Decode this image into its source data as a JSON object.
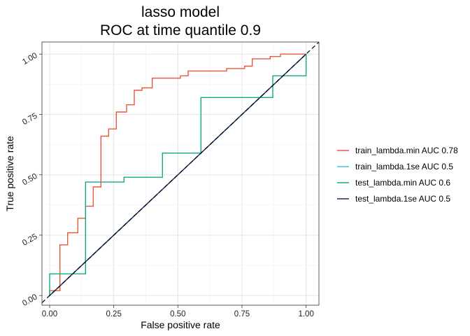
{
  "chart_data": {
    "type": "line",
    "title": "lasso model",
    "subtitle": "ROC at time quantile 0.9",
    "xlabel": "False positive rate",
    "ylabel": "True positive rate",
    "xlim": [
      -0.03,
      1.05
    ],
    "ylim": [
      -0.04,
      1.05
    ],
    "x_ticks": [
      0.0,
      0.25,
      0.5,
      0.75,
      1.0
    ],
    "x_tick_labels": [
      "0.00",
      "0.25",
      "0.50",
      "0.75",
      "1.00"
    ],
    "y_ticks": [
      0.0,
      0.25,
      0.5,
      0.75,
      1.0
    ],
    "y_tick_labels": [
      "0.00",
      "0.25",
      "0.50",
      "0.75",
      "1.00"
    ],
    "grid": true,
    "legend_position": "right",
    "diagonal_reference": true,
    "series": [
      {
        "name": "train_lambda.min AUC 0.78",
        "color": "#e8593a",
        "points": [
          [
            0,
            0
          ],
          [
            0,
            0.02
          ],
          [
            0.04,
            0.02
          ],
          [
            0.04,
            0.21
          ],
          [
            0.07,
            0.21
          ],
          [
            0.07,
            0.26
          ],
          [
            0.11,
            0.26
          ],
          [
            0.11,
            0.32
          ],
          [
            0.14,
            0.32
          ],
          [
            0.14,
            0.37
          ],
          [
            0.17,
            0.37
          ],
          [
            0.17,
            0.45
          ],
          [
            0.2,
            0.45
          ],
          [
            0.2,
            0.66
          ],
          [
            0.23,
            0.66
          ],
          [
            0.23,
            0.69
          ],
          [
            0.26,
            0.69
          ],
          [
            0.26,
            0.76
          ],
          [
            0.3,
            0.76
          ],
          [
            0.3,
            0.79
          ],
          [
            0.33,
            0.79
          ],
          [
            0.33,
            0.85
          ],
          [
            0.36,
            0.85
          ],
          [
            0.36,
            0.86
          ],
          [
            0.4,
            0.86
          ],
          [
            0.4,
            0.9
          ],
          [
            0.47,
            0.9
          ],
          [
            0.47,
            0.9
          ],
          [
            0.51,
            0.9
          ],
          [
            0.51,
            0.91
          ],
          [
            0.54,
            0.91
          ],
          [
            0.54,
            0.93
          ],
          [
            0.69,
            0.93
          ],
          [
            0.69,
            0.94
          ],
          [
            0.76,
            0.94
          ],
          [
            0.76,
            0.95
          ],
          [
            0.79,
            0.95
          ],
          [
            0.79,
            0.98
          ],
          [
            0.86,
            0.98
          ],
          [
            0.86,
            0.99
          ],
          [
            0.9,
            0.99
          ],
          [
            0.9,
            1.0
          ],
          [
            1.0,
            1.0
          ]
        ]
      },
      {
        "name": "train_lambda.1se AUC 0.5",
        "color": "#40c4e0",
        "points": [
          [
            0,
            0
          ],
          [
            1,
            1
          ]
        ]
      },
      {
        "name": "test_lambda.min AUC 0.6",
        "color": "#12a98a",
        "points": [
          [
            0,
            0
          ],
          [
            0,
            0.09
          ],
          [
            0.14,
            0.09
          ],
          [
            0.14,
            0.47
          ],
          [
            0.29,
            0.47
          ],
          [
            0.29,
            0.49
          ],
          [
            0.44,
            0.49
          ],
          [
            0.44,
            0.59
          ],
          [
            0.59,
            0.59
          ],
          [
            0.59,
            0.82
          ],
          [
            0.87,
            0.82
          ],
          [
            0.87,
            0.91
          ],
          [
            1.0,
            0.91
          ],
          [
            1.0,
            1.0
          ]
        ]
      },
      {
        "name": "test_lambda.1se AUC 0.5",
        "color": "#1f2a6b",
        "points": [
          [
            0,
            0
          ],
          [
            1,
            1
          ]
        ]
      }
    ]
  }
}
